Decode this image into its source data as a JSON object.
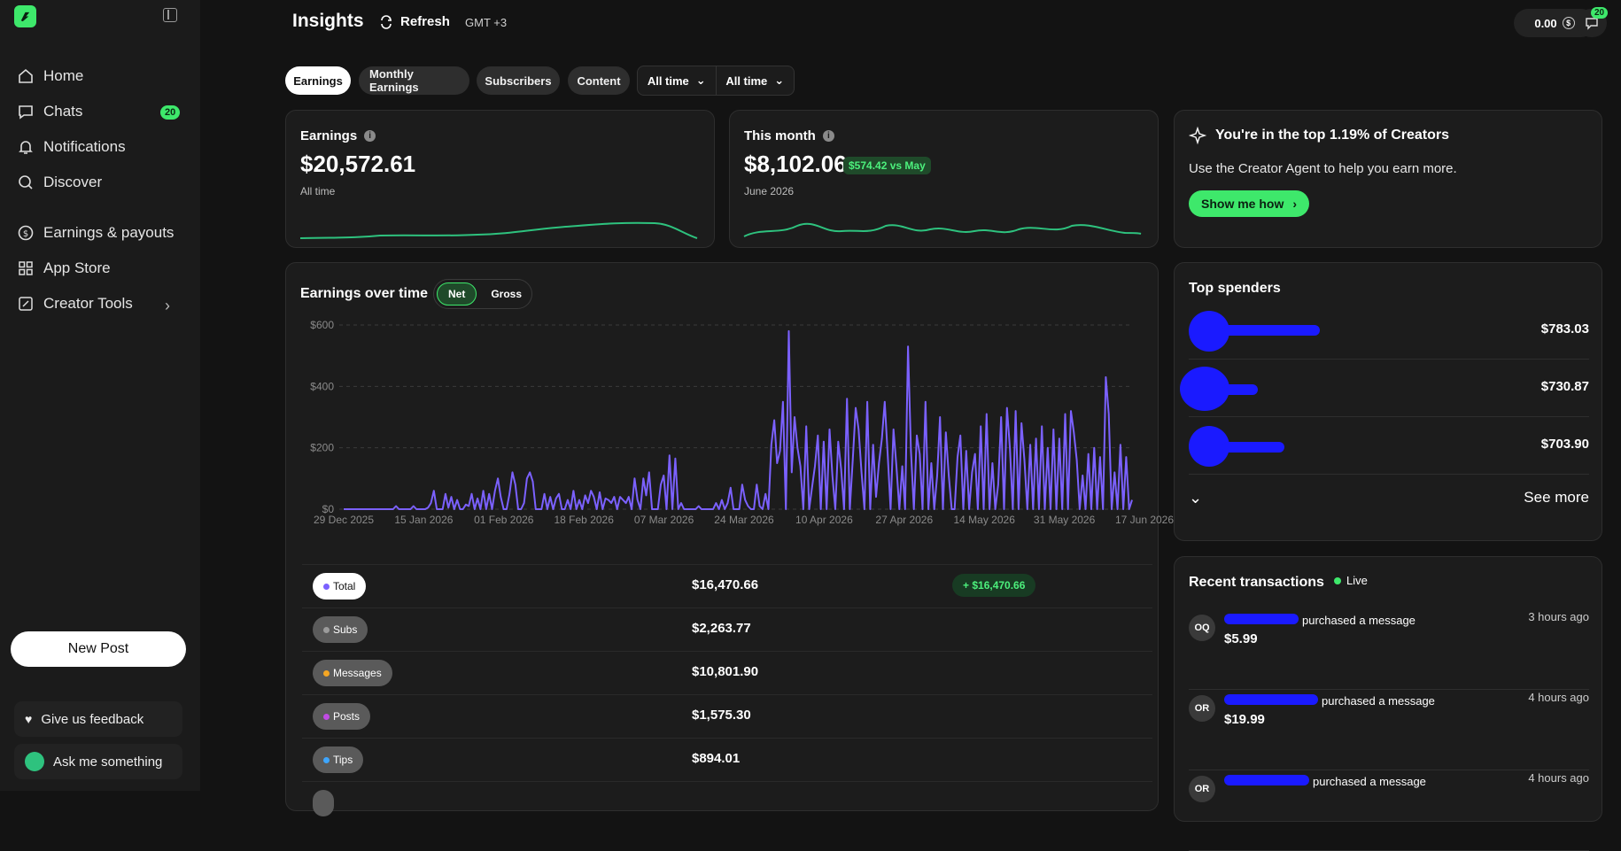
{
  "sidebar": {
    "items": [
      {
        "label": "Home",
        "icon": "home-icon"
      },
      {
        "label": "Chats",
        "icon": "chat-icon",
        "badge": "20"
      },
      {
        "label": "Notifications",
        "icon": "bell-icon"
      },
      {
        "label": "Discover",
        "icon": "search-icon"
      },
      {
        "label": "Earnings & payouts",
        "icon": "dollar-circle-icon"
      },
      {
        "label": "App Store",
        "icon": "apps-icon"
      },
      {
        "label": "Creator Tools",
        "icon": "tools-icon"
      }
    ],
    "new_post": "New Post",
    "feedback": "Give us feedback",
    "ask": "Ask me something"
  },
  "header": {
    "title": "Insights",
    "refresh": "Refresh",
    "timezone": "GMT +3",
    "balance": "0.00",
    "messages_badge": "20"
  },
  "tabs": [
    "Earnings",
    "Monthly Earnings",
    "Subscribers",
    "Content"
  ],
  "filters": [
    "All time",
    "All time"
  ],
  "earnings_card": {
    "label": "Earnings",
    "value": "$20,572.61",
    "sub": "All time"
  },
  "month_card": {
    "label": "This month",
    "value": "$8,102.06",
    "badge": "$574.42 vs May",
    "sub": "June 2026"
  },
  "promo": {
    "title": "You're in the top 1.19% of Creators",
    "text": "Use the Creator Agent to help you earn more.",
    "button": "Show me how"
  },
  "chart_section": {
    "title": "Earnings over time",
    "toggle": [
      "Net",
      "Gross"
    ]
  },
  "chart_data": {
    "type": "line",
    "ylim": [
      0,
      600
    ],
    "yticks": [
      "$600",
      "$400",
      "$200",
      "$0"
    ],
    "xticks": [
      "29 Dec 2025",
      "15 Jan 2026",
      "01 Feb 2026",
      "18 Feb 2026",
      "07 Mar 2026",
      "24 Mar 2026",
      "10 Apr 2026",
      "27 Apr 2026",
      "14 May 2026",
      "31 May 2026",
      "17 Jun 2026"
    ],
    "series": [
      {
        "color": "#7b61ff",
        "values": [
          0,
          0,
          0,
          0,
          0,
          0,
          0,
          0,
          0,
          0,
          0,
          0,
          0,
          0,
          0,
          0,
          0,
          0,
          10,
          0,
          0,
          0,
          0,
          0,
          10,
          0,
          0,
          0,
          0,
          5,
          20,
          60,
          0,
          0,
          0,
          50,
          5,
          40,
          0,
          30,
          0,
          0,
          15,
          10,
          50,
          0,
          35,
          0,
          60,
          0,
          50,
          0,
          60,
          100,
          40,
          0,
          0,
          50,
          120,
          80,
          0,
          0,
          20,
          100,
          120,
          90,
          0,
          0,
          0,
          50,
          0,
          40,
          0,
          35,
          50,
          0,
          0,
          30,
          0,
          60,
          0,
          30,
          0,
          45,
          20,
          60,
          40,
          0,
          55,
          0,
          35,
          30,
          20,
          40,
          0,
          40,
          30,
          20,
          40,
          0,
          100,
          30,
          0,
          100,
          45,
          120,
          0,
          0,
          0,
          80,
          110,
          0,
          175,
          0,
          165,
          0,
          20,
          0,
          0,
          0,
          0,
          0,
          10,
          0,
          0,
          0,
          0,
          0,
          20,
          0,
          30,
          0,
          20,
          70,
          0,
          0,
          0,
          80,
          30,
          10,
          0,
          0,
          80,
          10,
          0,
          50,
          0,
          210,
          290,
          150,
          190,
          350,
          0,
          580,
          120,
          300,
          200,
          140,
          0,
          270,
          0,
          70,
          140,
          240,
          0,
          220,
          0,
          260,
          110,
          0,
          220,
          130,
          0,
          360,
          0,
          160,
          330,
          260,
          120,
          0,
          350,
          0,
          210,
          40,
          150,
          230,
          350,
          180,
          0,
          260,
          140,
          0,
          140,
          0,
          530,
          190,
          0,
          240,
          180,
          0,
          350,
          0,
          150,
          0,
          110,
          300,
          0,
          250,
          110,
          0,
          0,
          170,
          240,
          0,
          190,
          0,
          120,
          180,
          0,
          270,
          0,
          310,
          0,
          150,
          0,
          80,
          300,
          0,
          330,
          200,
          0,
          320,
          0,
          280,
          160,
          0,
          210,
          0,
          230,
          0,
          270,
          0,
          200,
          0,
          260,
          0,
          230,
          0,
          310,
          0,
          320,
          250,
          160,
          0,
          110,
          0,
          180,
          0,
          200,
          0,
          170,
          0,
          430,
          310,
          0,
          120,
          0,
          210,
          0,
          170,
          0,
          30
        ]
      }
    ]
  },
  "breakdown": [
    {
      "label": "Total",
      "value": "$16,470.66",
      "delta": "+ $16,470.66",
      "color": "#7b61ff"
    },
    {
      "label": "Subs",
      "value": "$2,263.77",
      "color": "#9b9b9b"
    },
    {
      "label": "Messages",
      "value": "$10,801.90",
      "color": "#f5a623"
    },
    {
      "label": "Posts",
      "value": "$1,575.30",
      "color": "#c04be3"
    },
    {
      "label": "Tips",
      "value": "$894.01",
      "color": "#3ea6ff"
    }
  ],
  "top_spenders": {
    "title": "Top spenders",
    "values": [
      "$783.03",
      "$730.87",
      "$703.90"
    ],
    "see_more": "See more"
  },
  "transactions": {
    "title": "Recent transactions",
    "live": "Live",
    "items": [
      {
        "initials": "OQ",
        "action": "purchased a message",
        "amount": "$5.99",
        "time": "3 hours ago"
      },
      {
        "initials": "OR",
        "action": "purchased a message",
        "amount": "$19.99",
        "time": "4 hours ago"
      },
      {
        "initials": "OR",
        "action": "purchased a message",
        "amount": "",
        "time": "4 hours ago"
      }
    ]
  },
  "colors": {
    "accent": "#3ee86b",
    "line": "#7b61ff"
  }
}
